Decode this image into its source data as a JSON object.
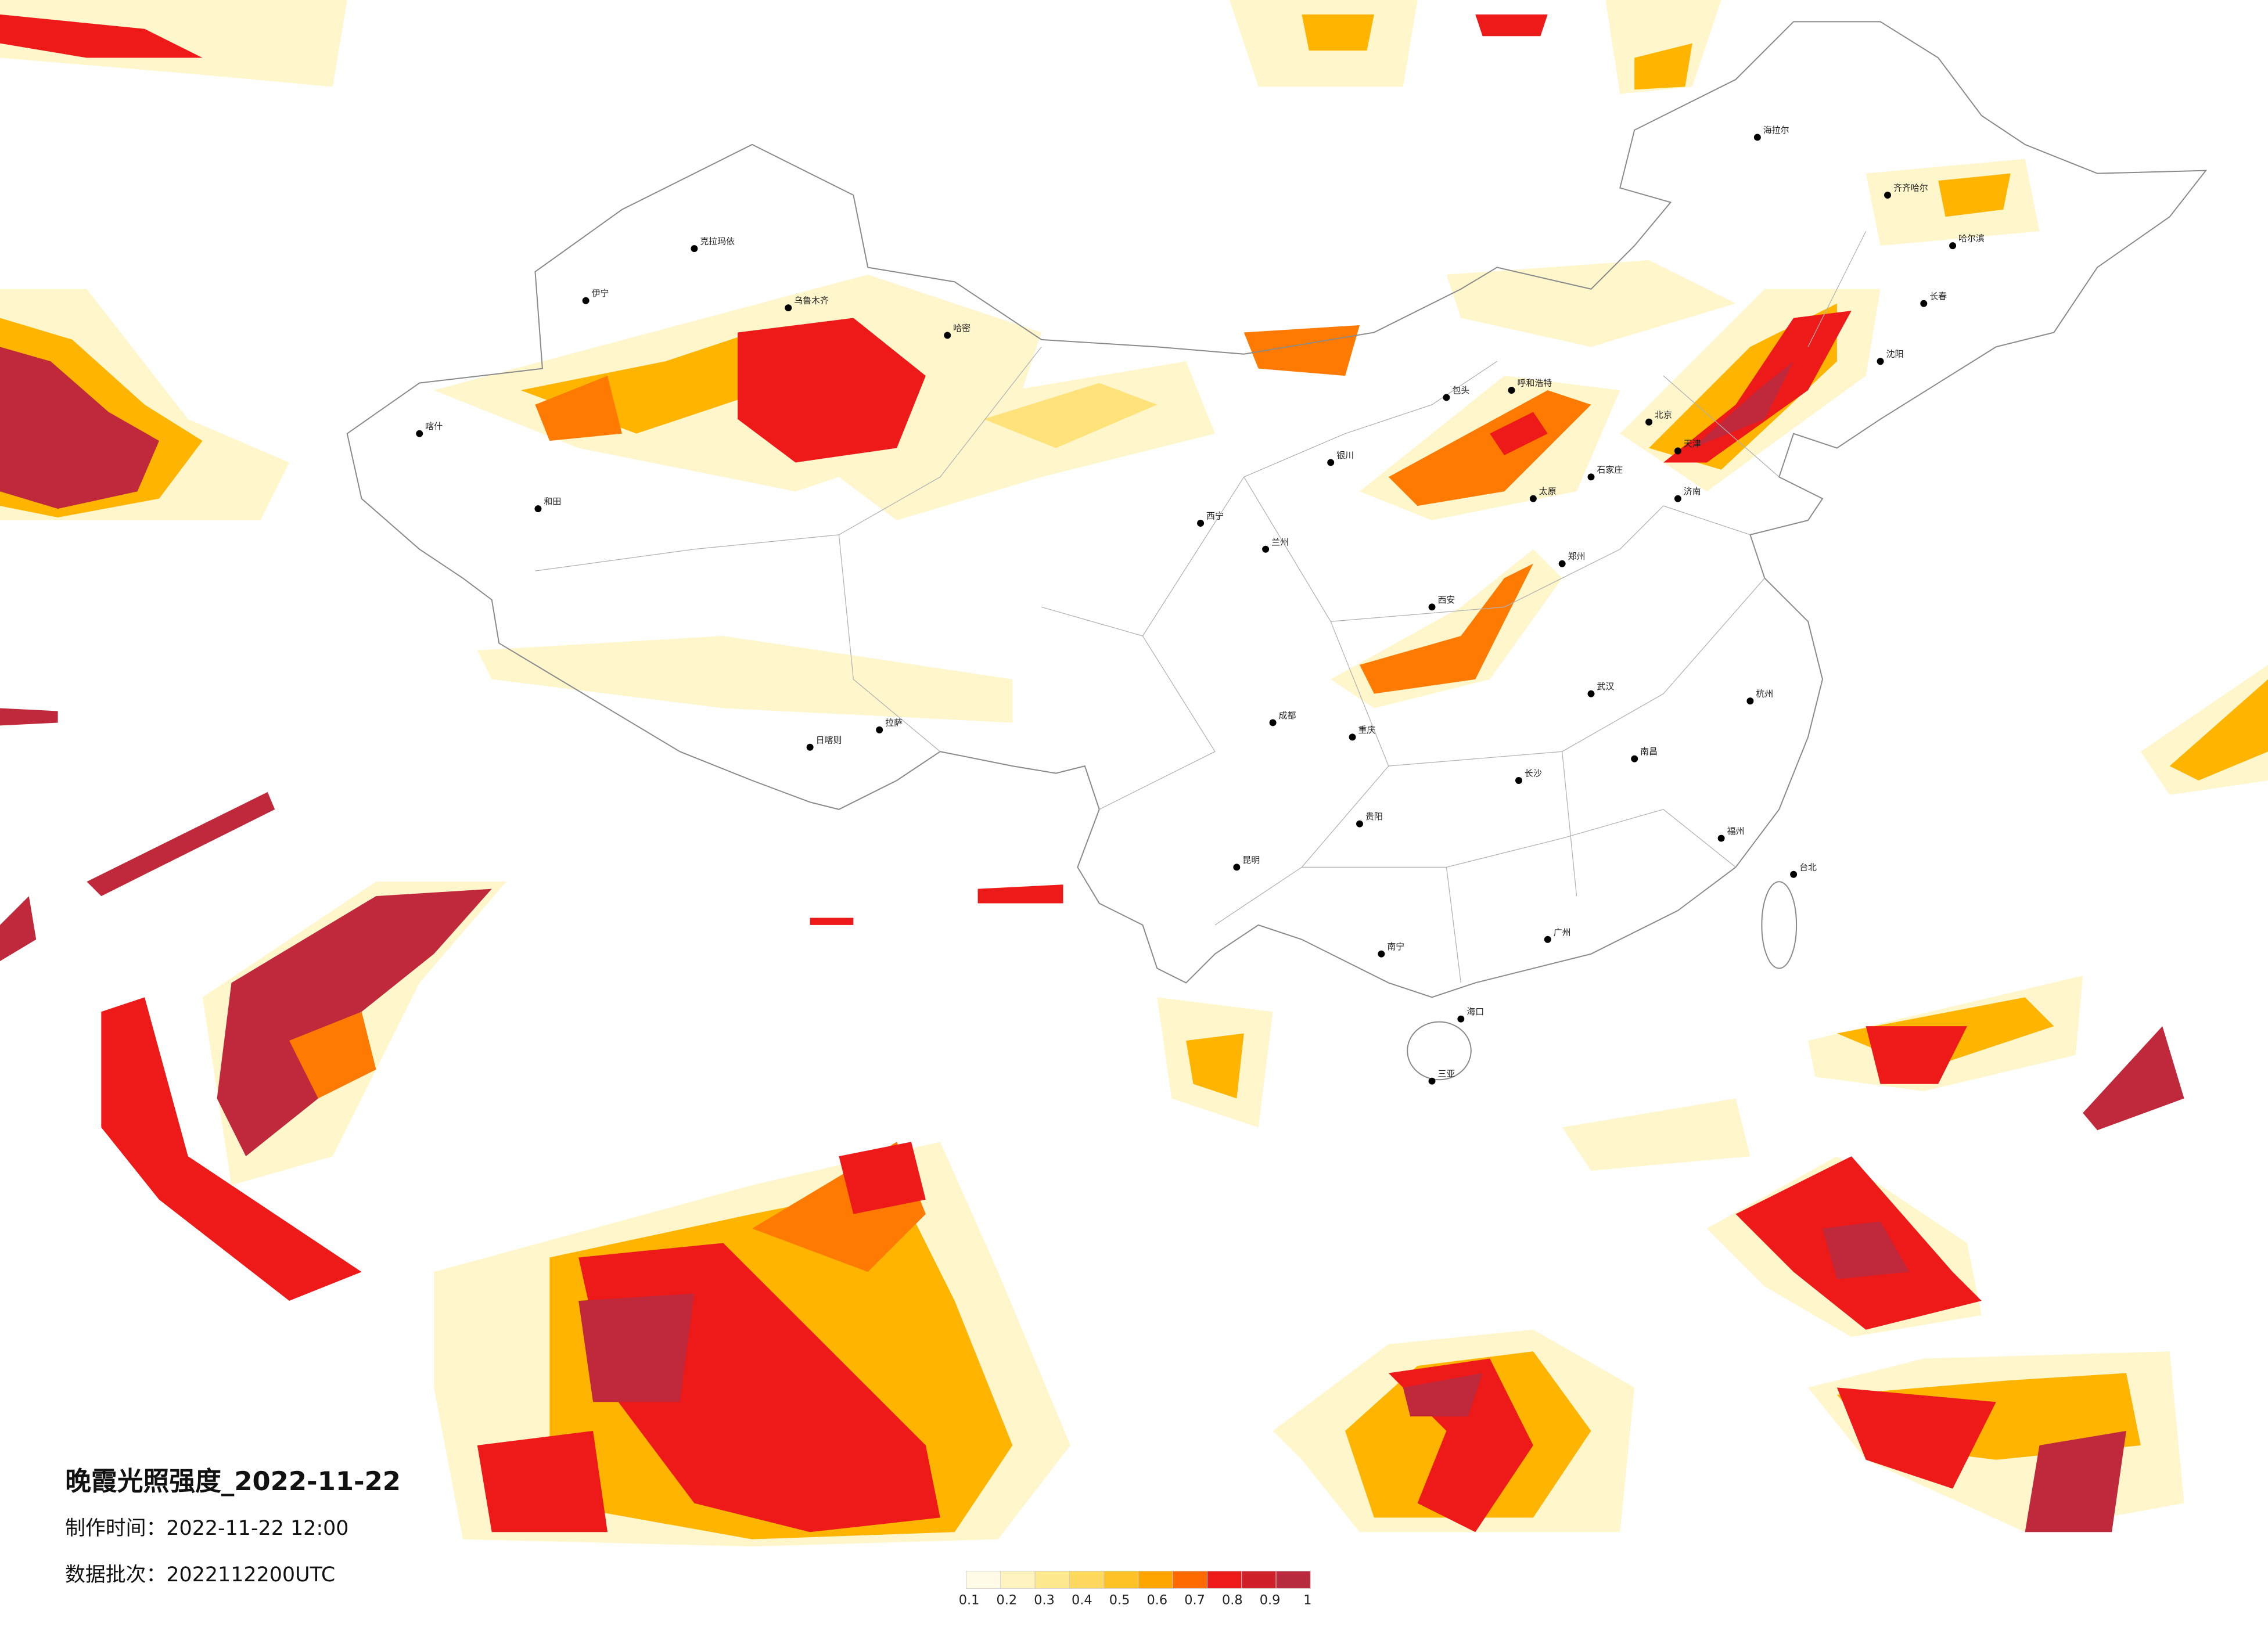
{
  "title": "晚霞光照强度_2022-11-22",
  "production_time": "制作时间：2022-11-22 12:00",
  "data_batch": "数据批次：2022112200UTC",
  "legend": {
    "ticks": [
      0.1,
      0.2,
      0.3,
      0.4,
      0.5,
      0.6,
      0.7,
      0.8,
      0.9,
      1
    ],
    "colors": [
      "#fffbe6",
      "#fff3bf",
      "#ffe98f",
      "#ffd860",
      "#ffc226",
      "#ffa500",
      "#ff6a00",
      "#ee1a1a",
      "#d0202a",
      "#b82a3e"
    ]
  },
  "cities": [
    "克拉玛依",
    "乌鲁木齐",
    "伊宁",
    "喀什",
    "和田",
    "哈密",
    "日喀则",
    "拉萨",
    "西宁",
    "兰州",
    "海拉尔",
    "齐齐哈尔",
    "哈尔滨",
    "长春",
    "沈阳",
    "呼和浩特",
    "包头",
    "银川",
    "太原",
    "石家庄",
    "北京",
    "天津",
    "济南",
    "郑州",
    "西安",
    "武汉",
    "成都",
    "重庆",
    "贵阳",
    "昆明",
    "南宁",
    "广州",
    "长沙",
    "南昌",
    "杭州",
    "福州",
    "台北",
    "海口",
    "三亚"
  ]
}
